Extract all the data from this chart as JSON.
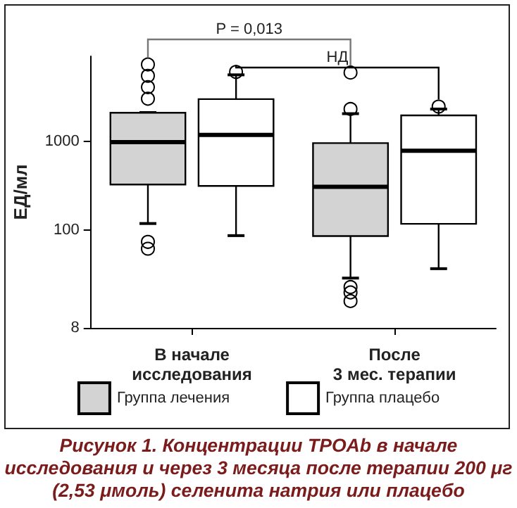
{
  "chart_data": {
    "type": "box",
    "title": "Рисунок 1. Концентрации TPOAb в начале исследования и через 3 месяца после терапии 200 μг (2,53 μмоль) селенита натрия или плацебо",
    "ylabel": "ЕД/мл",
    "categories": [
      "В начале\nисследования",
      "После\n3 мес. терапии"
    ],
    "series": [
      {
        "name": "Группа лечения",
        "color": "#d3d3d3",
        "boxes": [
          {
            "low": 119,
            "q1": 326,
            "median": 975,
            "q3": 2090,
            "high": 2100,
            "outliers": [
              3000,
              4050,
              5430,
              7280,
              74,
              62
            ]
          },
          {
            "low": 29,
            "q1": 86,
            "median": 307,
            "q3": 952,
            "high": 2040,
            "outliers": [
              2300,
              5900,
              23,
              20,
              16
            ]
          }
        ]
      },
      {
        "name": "Группа плацебо",
        "color": "#ffffff",
        "boxes": [
          {
            "low": 87,
            "q1": 315,
            "median": 1175,
            "q3": 2970,
            "high": 5570,
            "outliers": [
              6000
            ]
          },
          {
            "low": 37,
            "q1": 118,
            "median": 782,
            "q3": 1950,
            "high": 2300,
            "outliers": [
              2450
            ]
          }
        ]
      }
    ],
    "ylim": [
      8,
      9000
    ],
    "yticks": [
      8,
      100,
      1000
    ],
    "log": true,
    "grid": false,
    "legend": "bottom",
    "annotations": [
      "P = 0,013",
      "НД"
    ]
  }
}
